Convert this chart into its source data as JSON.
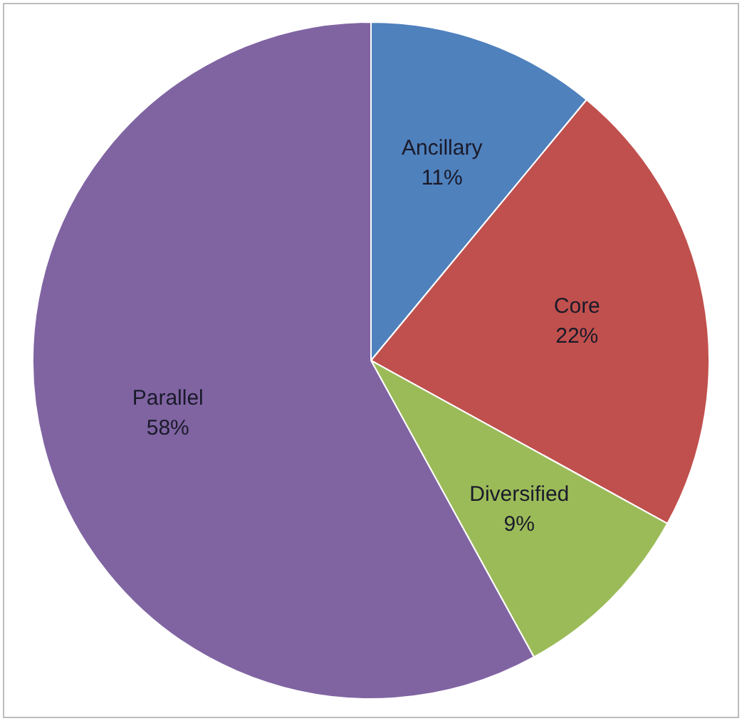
{
  "chart_data": {
    "type": "pie",
    "categories": [
      "Ancillary",
      "Core",
      "Diversified",
      "Parallel"
    ],
    "values": [
      11,
      22,
      9,
      58
    ],
    "colors": [
      "#4f81bd",
      "#c0504d",
      "#9bbb59",
      "#8064a2"
    ],
    "value_labels": [
      "11%",
      "22%",
      "9%",
      "58%"
    ],
    "legend": false
  }
}
